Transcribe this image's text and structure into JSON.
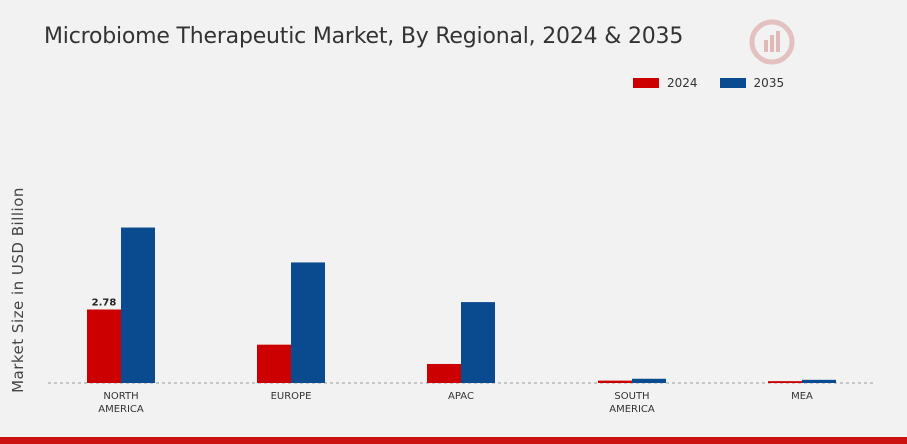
{
  "chart_data": {
    "type": "bar",
    "title": "Microbiome Therapeutic Market, By Regional, 2024 & 2035",
    "xlabel": "",
    "ylabel": "Market Size in USD Billion",
    "categories": [
      "NORTH\nAMERICA",
      "EUROPE",
      "APAC",
      "SOUTH\nAMERICA",
      "MEA"
    ],
    "series": [
      {
        "name": "2024",
        "color": "#cc0000",
        "values": [
          2.78,
          1.45,
          0.72,
          0.09,
          0.07
        ]
      },
      {
        "name": "2035",
        "color": "#0a4a8f",
        "values": [
          5.88,
          4.56,
          3.06,
          0.16,
          0.12
        ]
      }
    ],
    "data_labels": [
      {
        "series": 0,
        "category": 0,
        "text": "2.78"
      }
    ],
    "ylim": [
      0,
      8.4
    ],
    "grid": false,
    "legend_position": "top-right"
  },
  "logo": {
    "icon": "market-research-logo-icon",
    "color": "#c0392b"
  }
}
